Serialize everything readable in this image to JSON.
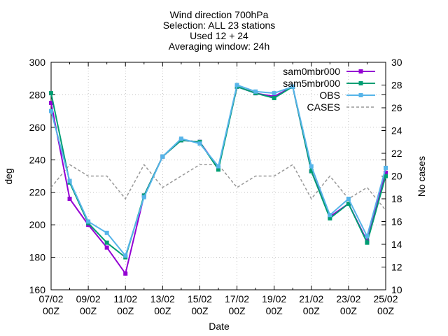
{
  "chart_data": {
    "type": "line",
    "title_lines": [
      "Wind direction 700hPa",
      "Selection: ALL     23 stations",
      "Used 12 + 24",
      "Averaging window: 24h"
    ],
    "xlabel": "Date",
    "ylabel": "deg",
    "y2label": "No cases",
    "ylim": [
      160,
      300
    ],
    "y2lim": [
      10,
      30
    ],
    "yticks": [
      160,
      180,
      200,
      220,
      240,
      260,
      280,
      300
    ],
    "y2ticks": [
      10,
      12,
      14,
      16,
      18,
      20,
      22,
      24,
      26,
      28,
      30
    ],
    "grid": true,
    "legend_position": "top-right",
    "x": [
      "07/02 00Z",
      "08/02 00Z",
      "09/02 00Z",
      "10/02 00Z",
      "11/02 00Z",
      "12/02 00Z",
      "13/02 00Z",
      "14/02 00Z",
      "15/02 00Z",
      "16/02 00Z",
      "17/02 00Z",
      "18/02 00Z",
      "19/02 00Z",
      "20/02 00Z",
      "21/02 00Z",
      "22/02 00Z",
      "23/02 00Z",
      "24/02 00Z",
      "25/02 00Z"
    ],
    "xticks": [
      {
        "top": "07/02",
        "bottom": "00Z"
      },
      {
        "top": "09/02",
        "bottom": "00Z"
      },
      {
        "top": "11/02",
        "bottom": "00Z"
      },
      {
        "top": "13/02",
        "bottom": "00Z"
      },
      {
        "top": "15/02",
        "bottom": "00Z"
      },
      {
        "top": "17/02",
        "bottom": "00Z"
      },
      {
        "top": "19/02",
        "bottom": "00Z"
      },
      {
        "top": "21/02",
        "bottom": "00Z"
      },
      {
        "top": "23/02",
        "bottom": "00Z"
      },
      {
        "top": "25/02",
        "bottom": "00Z"
      }
    ],
    "series": [
      {
        "name": "sam0mbr000",
        "axis": "y",
        "color": "#9400d3",
        "dash": false,
        "marker": true,
        "values": [
          275,
          216,
          200,
          186,
          170,
          218,
          242,
          252,
          251,
          235,
          285,
          281,
          279,
          285,
          233,
          205,
          213,
          190,
          232
        ]
      },
      {
        "name": "sam5mbr000",
        "axis": "y",
        "color": "#009e73",
        "dash": false,
        "marker": true,
        "values": [
          281,
          226,
          201,
          189,
          180,
          218,
          242,
          252,
          251,
          234,
          285,
          281,
          278,
          285,
          233,
          204,
          213,
          189,
          230
        ]
      },
      {
        "name": "OBS",
        "axis": "y",
        "color": "#56b4e9",
        "dash": false,
        "marker": true,
        "values": [
          270,
          227,
          202,
          195,
          181,
          217,
          242,
          253,
          250,
          236,
          286,
          282,
          281,
          285,
          236,
          206,
          216,
          193,
          235
        ]
      },
      {
        "name": "CASES",
        "axis": "y2",
        "color": "#999999",
        "dash": true,
        "marker": false,
        "values": [
          19,
          21,
          20,
          20,
          18,
          21,
          19,
          20,
          21,
          21,
          19,
          20,
          20,
          21,
          18,
          20,
          18,
          19,
          17
        ]
      }
    ]
  }
}
